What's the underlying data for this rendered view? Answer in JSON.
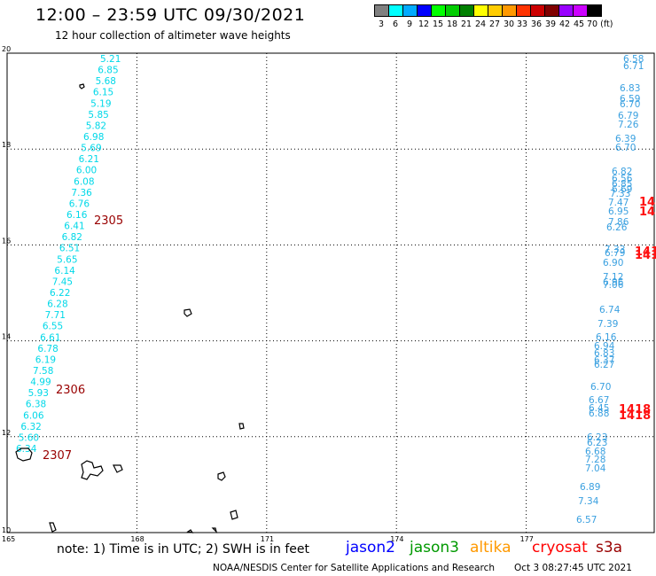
{
  "header": {
    "title": "12:00 – 23:59 UTC 09/30/2021",
    "subtitle": "12 hour collection of altimeter wave heights"
  },
  "color_scale": {
    "colors": [
      "#808080",
      "#00ffff",
      "#00aaff",
      "#0000ff",
      "#00ff00",
      "#00cc00",
      "#008000",
      "#ffff00",
      "#ffcc00",
      "#ff9900",
      "#ff3300",
      "#cc0000",
      "#800000",
      "#9900ff",
      "#cc00ff",
      "#000000"
    ],
    "labels": [
      "3",
      "6",
      "9",
      "12",
      "15",
      "18",
      "21",
      "24",
      "27",
      "30",
      "33",
      "36",
      "39",
      "42",
      "45",
      "70 (ft)"
    ]
  },
  "map": {
    "x_axis_ticks": [
      "165",
      "168",
      "171",
      "174",
      "177"
    ],
    "y_axis_ticks": [
      "10",
      "12",
      "14",
      "16",
      "18",
      "20"
    ],
    "lon_range": [
      165,
      180
    ],
    "lat_range": [
      10,
      20
    ],
    "track_labels": [
      "2305",
      "2306",
      "2307"
    ],
    "left_track_values": [
      "5.21",
      "6.85",
      "5.68",
      "6.15",
      "5.19",
      "5.85",
      "5.82",
      "6.98",
      "5.69",
      "6.21",
      "6.00",
      "6.08",
      "7.36",
      "6.76",
      "6.16",
      "6.41",
      "6.82",
      "6.51",
      "5.65",
      "6.14",
      "7.45",
      "6.22",
      "6.28",
      "7.71",
      "6.55",
      "6.61",
      "6.78",
      "6.19",
      "7.58",
      "4.99",
      "5.93",
      "6.38",
      "6.06",
      "6.32",
      "5.60",
      "6.34"
    ],
    "right_track_values": [
      "6.58",
      "6.71",
      "6.83",
      "6.59",
      "6.70",
      "6.79",
      "7.26",
      "6.39",
      "6.70",
      "6.82",
      "6.56",
      "6.85",
      "6.69",
      "7.33",
      "7.47",
      "6.95",
      "7.86",
      "6.26",
      "7.33",
      "6.79",
      "6.90",
      "7.12",
      "6.96",
      "7.06",
      "6.74",
      "7.39",
      "6.16",
      "6.94",
      "6.83",
      "6.37",
      "6.27",
      "6.70",
      "6.67",
      "6.45",
      "6.88",
      "6.23",
      "6.23",
      "6.68",
      "7.28",
      "7.04",
      "6.89",
      "7.34",
      "6.57"
    ],
    "cryosat_values": [
      "14",
      "14",
      "141",
      "1418"
    ]
  },
  "footer": {
    "note": "note:  1) Time is in UTC; 2) SWH is in feet",
    "satellites": [
      {
        "name": "jason2",
        "color": "#0000ff"
      },
      {
        "name": "jason3",
        "color": "#009900"
      },
      {
        "name": "altika",
        "color": "#ff9900"
      },
      {
        "name": "cryosat",
        "color": "#ff0000"
      },
      {
        "name": "s3a",
        "color": "#990000"
      }
    ],
    "credit": "NOAA/NESDIS Center for Satellite Applications and Research",
    "timestamp": "Oct  3 08:27:45 UTC 2021"
  }
}
